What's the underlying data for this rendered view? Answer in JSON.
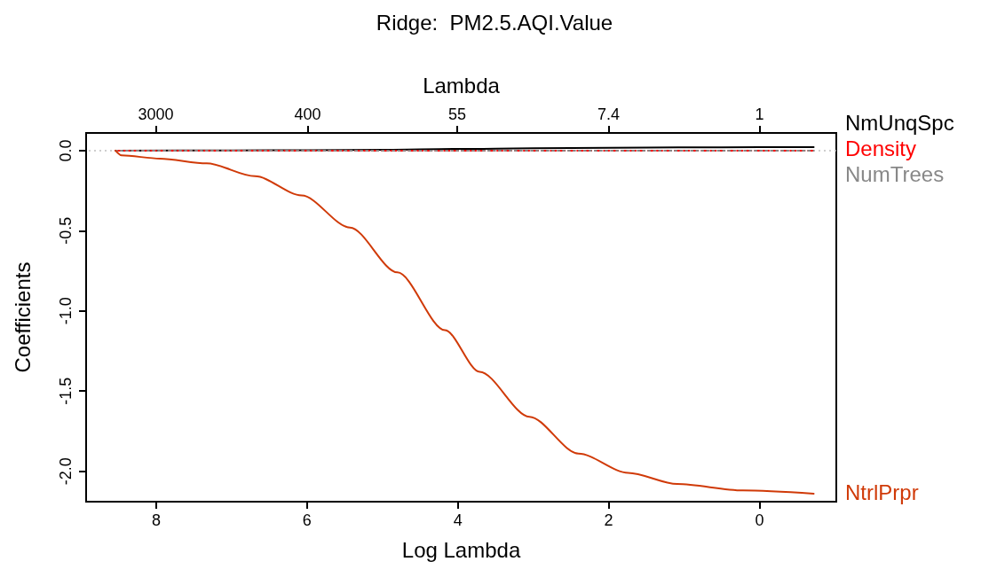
{
  "chart_data": {
    "type": "line",
    "title": "Ridge:  PM2.5.AQI.Value",
    "xlabel": "Log Lambda",
    "ylabel": "Coefficients",
    "x2label": "Lambda",
    "xlim": [
      8.93,
      -1.02
    ],
    "xticks": [
      8,
      6,
      4,
      2,
      0
    ],
    "x2lim": [
      7555,
      0.3606
    ],
    "x2ticks": [
      3000,
      400,
      55,
      7.4,
      1
    ],
    "log": "x2",
    "ylim": [
      -2.19,
      0.11
    ],
    "yticks": [
      {
        "value": 0,
        "label": "0.0"
      },
      {
        "value": -0.5,
        "label": "-0.5"
      },
      {
        "value": -1,
        "label": "-1.0"
      },
      {
        "value": -1.5,
        "label": "-1.5"
      },
      {
        "value": -2,
        "label": "-2.0"
      }
    ],
    "grid": false,
    "legend": false,
    "marker": "none",
    "ref_lines": [
      {
        "axis": "y",
        "value": 0,
        "color": "#bebebe",
        "line_style": "dotted"
      }
    ],
    "series": [
      {
        "name": "NmUnqSpc",
        "color": "#000000",
        "line_style": "solid",
        "x": [
          8.54,
          7,
          6,
          5,
          4,
          3,
          2,
          1,
          0,
          -0.72
        ],
        "values": [
          0,
          0.001,
          0.002,
          0.005,
          0.01,
          0.015,
          0.018,
          0.02,
          0.021,
          0.021
        ]
      },
      {
        "name": "Density",
        "color": "#ff0000",
        "line_style": "dashed",
        "x": [
          8.54,
          6,
          4,
          2,
          0,
          -0.72
        ],
        "values": [
          0,
          0,
          0,
          0,
          0,
          0
        ]
      },
      {
        "name": "NumTrees",
        "color": "#888888",
        "line_style": "dotted",
        "x": [
          8.54,
          4,
          -0.72
        ],
        "values": [
          0,
          0,
          0
        ]
      },
      {
        "name": "NtrlPrpr",
        "color": "#d03a08",
        "line_style": "solid",
        "x": [
          8.54,
          8.46,
          7.95,
          7.33,
          6.69,
          6.07,
          5.43,
          4.8,
          4.17,
          3.71,
          3.05,
          2.4,
          1.74,
          1.09,
          0.22,
          -0.72
        ],
        "values": [
          0,
          -0.03,
          -0.05,
          -0.08,
          -0.16,
          -0.28,
          -0.48,
          -0.76,
          -1.12,
          -1.38,
          -1.66,
          -1.89,
          -2.01,
          -2.08,
          -2.12,
          -2.14
        ]
      }
    ]
  }
}
